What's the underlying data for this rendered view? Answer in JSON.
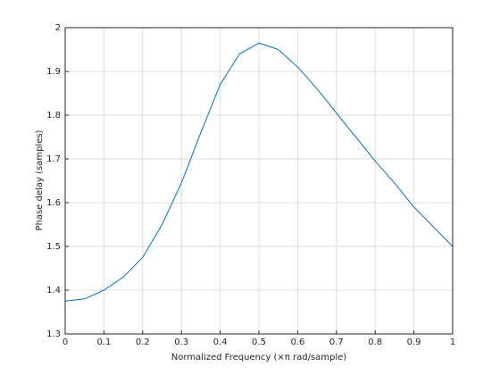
{
  "chart_data": {
    "type": "line",
    "xlabel": "Normalized Frequency  (×π rad/sample)",
    "ylabel": "Phase delay (samples)",
    "x": [
      0,
      0.05,
      0.1,
      0.15,
      0.2,
      0.25,
      0.3,
      0.35,
      0.4,
      0.45,
      0.5,
      0.55,
      0.6,
      0.65,
      0.7,
      0.75,
      0.8,
      0.85,
      0.9,
      0.95,
      1
    ],
    "values": [
      1.375,
      1.38,
      1.4,
      1.43,
      1.475,
      1.55,
      1.645,
      1.76,
      1.87,
      1.94,
      1.965,
      1.95,
      1.91,
      1.86,
      1.805,
      1.75,
      1.695,
      1.645,
      1.59,
      1.545,
      1.5
    ],
    "color": "#0072bd",
    "xlim": [
      0,
      1
    ],
    "xticks": [
      0,
      0.1,
      0.2,
      0.3,
      0.4,
      0.5,
      0.6,
      0.7,
      0.8,
      0.9,
      1
    ],
    "ylim": [
      1.3,
      2
    ],
    "yticks": [
      1.3,
      1.4,
      1.5,
      1.6,
      1.7,
      1.8,
      1.9,
      2
    ],
    "grid": true
  }
}
